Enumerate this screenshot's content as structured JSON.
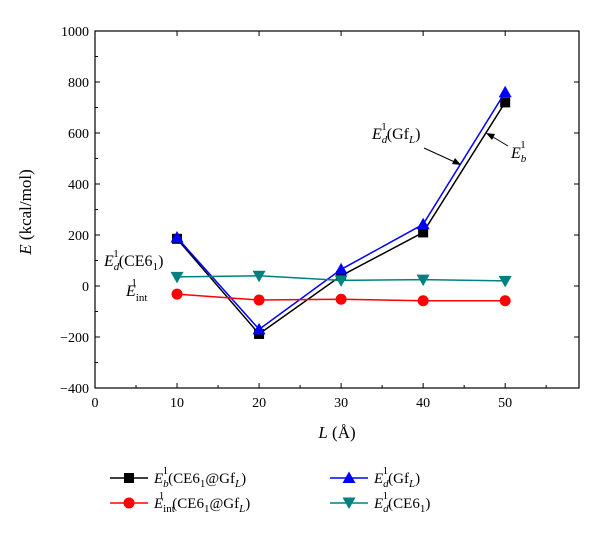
{
  "chart_data": {
    "type": "line",
    "xlabel": "L (Å)",
    "ylabel": "E (kcal/mol)",
    "xlim": [
      0,
      59
    ],
    "ylim": [
      -400,
      1000
    ],
    "x_ticks": [
      0,
      10,
      20,
      30,
      40,
      50
    ],
    "y_ticks": [
      -400,
      -200,
      0,
      200,
      400,
      600,
      800,
      1000
    ],
    "x": [
      10,
      20,
      30,
      40,
      50
    ],
    "series": [
      {
        "name": "E_b^1(CE6_1@Gf_L)",
        "color": "#000000",
        "marker": "square",
        "values": [
          185,
          -188,
          40,
          210,
          720
        ]
      },
      {
        "name": "E_d^1(Gf_L)",
        "color": "#0000ff",
        "marker": "triangle-up",
        "values": [
          190,
          -170,
          65,
          242,
          760
        ]
      },
      {
        "name": "E_int^1(CE6_1@Gf_L)",
        "color": "#ff0000",
        "marker": "circle",
        "values": [
          -32,
          -55,
          -52,
          -58,
          -58
        ]
      },
      {
        "name": "E_d^1(CE6_1)",
        "color": "#008080",
        "marker": "triangle-down",
        "values": [
          36,
          40,
          22,
          25,
          20
        ]
      }
    ],
    "annotations": [
      "E_d^1(Gf_L)",
      "E_b^1",
      "E_d^1(CE6_1)",
      "E_int^1"
    ],
    "legend_placement": "bottom",
    "grid": false
  }
}
